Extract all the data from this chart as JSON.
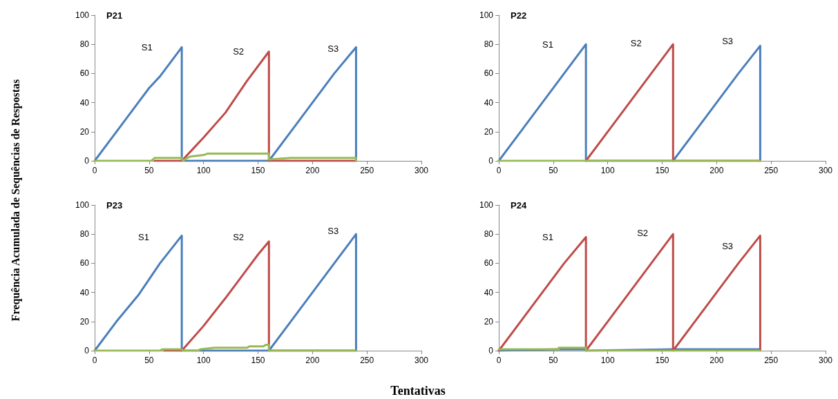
{
  "chart_data": [
    {
      "type": "line",
      "title": "P21",
      "ylabel": "Frequência Acumulada de Sequências de Respostas",
      "xlabel": "Tentativas",
      "xlim": [
        0,
        300
      ],
      "xticks": [
        0,
        50,
        100,
        150,
        200,
        250,
        300
      ],
      "ylim": [
        0,
        100
      ],
      "yticks": [
        0,
        20,
        40,
        60,
        80,
        100
      ],
      "grid": false,
      "line_style": "solid",
      "annotations": [
        "S1",
        "S2",
        "S3"
      ],
      "series": [
        {
          "color": "#4a7ebb",
          "x": [
            0,
            20,
            40,
            50,
            60,
            80,
            80,
            160,
            180,
            200,
            220,
            240,
            240
          ],
          "values": [
            0,
            20,
            40,
            50,
            58,
            78,
            0,
            0,
            20,
            40,
            60,
            78,
            0
          ]
        },
        {
          "color": "#be4b48",
          "x": [
            55,
            80,
            90,
            100,
            120,
            140,
            160,
            160,
            240
          ],
          "values": [
            0,
            0,
            8,
            16,
            33,
            55,
            75,
            0,
            0
          ]
        },
        {
          "color": "#98b954",
          "x": [
            0,
            52,
            55,
            80,
            81,
            85,
            88,
            100,
            104,
            160,
            160,
            180,
            240,
            240
          ],
          "values": [
            0,
            0,
            2,
            2,
            0,
            2,
            3,
            4,
            5,
            5,
            1,
            2,
            2,
            0
          ]
        }
      ]
    },
    {
      "type": "line",
      "title": "P22",
      "xlim": [
        0,
        300
      ],
      "xticks": [
        0,
        50,
        100,
        150,
        200,
        250,
        300
      ],
      "ylim": [
        0,
        100
      ],
      "yticks": [
        0,
        20,
        40,
        60,
        80,
        100
      ],
      "grid": false,
      "line_style": "solid",
      "annotations": [
        "S1",
        "S2",
        "S3"
      ],
      "series": [
        {
          "color": "#4a7ebb",
          "x": [
            0,
            20,
            40,
            60,
            80,
            80,
            160,
            180,
            200,
            220,
            240,
            240
          ],
          "values": [
            0,
            20,
            40,
            60,
            80,
            0,
            0,
            20,
            40,
            60,
            79,
            0
          ]
        },
        {
          "color": "#be4b48",
          "x": [
            80,
            100,
            120,
            140,
            160,
            160,
            240
          ],
          "values": [
            0,
            20,
            40,
            60,
            80,
            0,
            0
          ]
        },
        {
          "color": "#98b954",
          "x": [
            0,
            240
          ],
          "values": [
            0,
            0
          ]
        }
      ]
    },
    {
      "type": "line",
      "title": "P23",
      "xlim": [
        0,
        300
      ],
      "xticks": [
        0,
        50,
        100,
        150,
        200,
        250,
        300
      ],
      "ylim": [
        0,
        100
      ],
      "yticks": [
        0,
        20,
        40,
        60,
        80,
        100
      ],
      "grid": false,
      "line_style": "solid",
      "annotations": [
        "S1",
        "S2",
        "S3"
      ],
      "series": [
        {
          "color": "#4a7ebb",
          "x": [
            0,
            20,
            40,
            60,
            80,
            80,
            160,
            180,
            200,
            220,
            240,
            240
          ],
          "values": [
            0,
            20,
            38,
            60,
            79,
            0,
            0,
            20,
            40,
            60,
            80,
            0
          ]
        },
        {
          "color": "#be4b48",
          "x": [
            64,
            80,
            100,
            120,
            140,
            150,
            160,
            160,
            240
          ],
          "values": [
            0,
            0,
            17,
            36,
            56,
            66,
            75,
            0,
            0
          ]
        },
        {
          "color": "#98b954",
          "x": [
            0,
            60,
            62,
            80,
            81,
            95,
            97,
            110,
            140,
            142,
            155,
            157,
            160,
            160,
            240
          ],
          "values": [
            0,
            0,
            1,
            1,
            0,
            0,
            1,
            2,
            2,
            3,
            3,
            4,
            4,
            0,
            0
          ]
        }
      ]
    },
    {
      "type": "line",
      "title": "P24",
      "xlim": [
        0,
        300
      ],
      "xticks": [
        0,
        50,
        100,
        150,
        200,
        250,
        300
      ],
      "ylim": [
        0,
        100
      ],
      "yticks": [
        0,
        20,
        40,
        60,
        80,
        100
      ],
      "grid": false,
      "line_style": "solid",
      "annotations": [
        "S1",
        "S2",
        "S3"
      ],
      "series": [
        {
          "color": "#4a7ebb",
          "x": [
            0,
            55,
            80,
            80,
            160,
            240
          ],
          "values": [
            0,
            1,
            1,
            0,
            1,
            1
          ]
        },
        {
          "color": "#be4b48",
          "x": [
            0,
            20,
            40,
            60,
            80,
            80,
            100,
            120,
            140,
            160,
            160,
            180,
            200,
            220,
            240,
            240
          ],
          "values": [
            0,
            20,
            40,
            60,
            78,
            0,
            20,
            40,
            60,
            80,
            0,
            20,
            40,
            60,
            79,
            0
          ]
        },
        {
          "color": "#98b954",
          "x": [
            0,
            55,
            55,
            80,
            80,
            240
          ],
          "values": [
            1,
            1,
            2,
            2,
            0,
            0
          ]
        }
      ]
    }
  ]
}
